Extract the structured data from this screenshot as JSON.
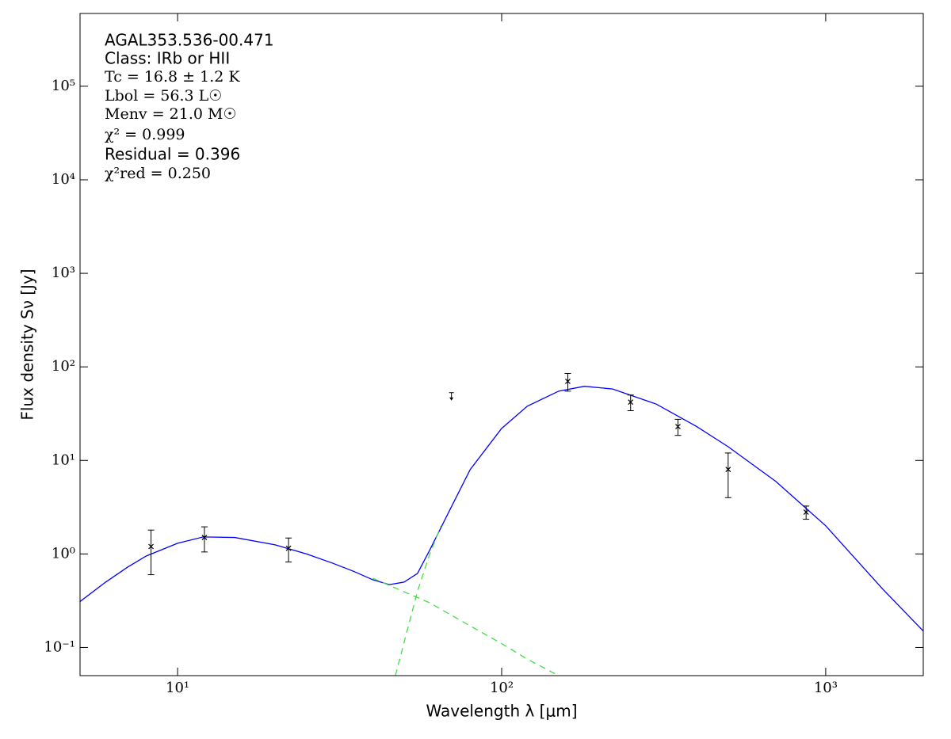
{
  "chart_data": {
    "type": "sed",
    "xlabel": "Wavelength λ [μm]",
    "ylabel": "Flux density Sν [Jy]",
    "annotations": [
      "AGAL353.536-00.471",
      "Class: IRb or HII",
      "Tc = 16.8 ± 1.2 K",
      "Lbol = 56.3 L☉",
      "Menv = 21.0 M☉",
      "χ² = 0.999",
      "Residual = 0.396",
      "χ²red = 0.250"
    ],
    "xscale": "log",
    "yscale": "log",
    "xlim": [
      5,
      2000
    ],
    "ylim": [
      0.05,
      600000
    ],
    "xticks": [
      {
        "value": 10,
        "label": "10¹"
      },
      {
        "value": 100,
        "label": "10²"
      },
      {
        "value": 1000,
        "label": "10³"
      }
    ],
    "yticks": [
      {
        "value": 0.1,
        "label": "10⁻¹"
      },
      {
        "value": 1,
        "label": "10⁰"
      },
      {
        "value": 10,
        "label": "10¹"
      },
      {
        "value": 100,
        "label": "10²"
      },
      {
        "value": 1000,
        "label": "10³"
      },
      {
        "value": 10000,
        "label": "10⁴"
      },
      {
        "value": 100000,
        "label": "10⁵"
      }
    ],
    "series": [
      {
        "color": "#0000ff",
        "style": "solid",
        "x": [
          5,
          6,
          7,
          8,
          10,
          12,
          15,
          20,
          25,
          30,
          35,
          40,
          45,
          50,
          55,
          60,
          70,
          80,
          100,
          120,
          150,
          180,
          220,
          300,
          400,
          500,
          700,
          1000,
          1500,
          2000
        ],
        "values": [
          0.31,
          0.5,
          0.72,
          0.95,
          1.3,
          1.52,
          1.5,
          1.25,
          1.0,
          0.8,
          0.65,
          0.53,
          0.47,
          0.5,
          0.62,
          1.1,
          3.2,
          8,
          22,
          38,
          55,
          62,
          58,
          40,
          23,
          14,
          6,
          2.0,
          0.42,
          0.15
        ]
      },
      {
        "color": "#44dd44",
        "style": "dashed",
        "x": [
          40,
          60,
          80,
          100,
          120,
          150
        ],
        "values": [
          0.55,
          0.3,
          0.17,
          0.11,
          0.075,
          0.05
        ]
      },
      {
        "color": "#44dd44",
        "style": "dashed",
        "x": [
          47,
          55,
          60,
          65
        ],
        "values": [
          0.05,
          0.4,
          1.0,
          2.0
        ]
      }
    ],
    "points": {
      "color": "#000000",
      "x": [
        8.28,
        12.1,
        22,
        160,
        250,
        350,
        500,
        870
      ],
      "values": [
        1.2,
        1.5,
        1.15,
        70,
        42,
        23,
        8,
        2.8
      ],
      "errors": [
        0.6,
        0.45,
        0.33,
        15,
        8,
        4.5,
        4,
        0.45
      ]
    },
    "upper_limits": {
      "color": "#000000",
      "x": [
        70
      ],
      "values": [
        53
      ]
    }
  }
}
